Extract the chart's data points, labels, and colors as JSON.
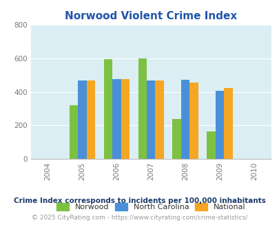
{
  "title": "Norwood Violent Crime Index",
  "title_color": "#2255aa",
  "years": [
    2004,
    2005,
    2006,
    2007,
    2008,
    2009,
    2010
  ],
  "data_years": [
    2005,
    2006,
    2007,
    2008,
    2009
  ],
  "norwood": [
    320,
    595,
    600,
    240,
    165
  ],
  "north_carolina": [
    470,
    475,
    470,
    472,
    405
  ],
  "national": [
    470,
    478,
    470,
    455,
    425
  ],
  "norwood_color": "#7dc142",
  "nc_color": "#4a90d9",
  "national_color": "#f5a623",
  "bg_color": "#daeef3",
  "ylim": [
    0,
    800
  ],
  "yticks": [
    0,
    200,
    400,
    600,
    800
  ],
  "xlim": [
    2003.5,
    2010.5
  ],
  "bar_width": 0.25,
  "legend_labels": [
    "Norwood",
    "North Carolina",
    "National"
  ],
  "footnote1": "Crime Index corresponds to incidents per 100,000 inhabitants",
  "footnote2": "© 2025 CityRating.com - https://www.cityrating.com/crime-statistics/",
  "footnote1_color": "#1a3a6b",
  "footnote2_color": "#999999"
}
